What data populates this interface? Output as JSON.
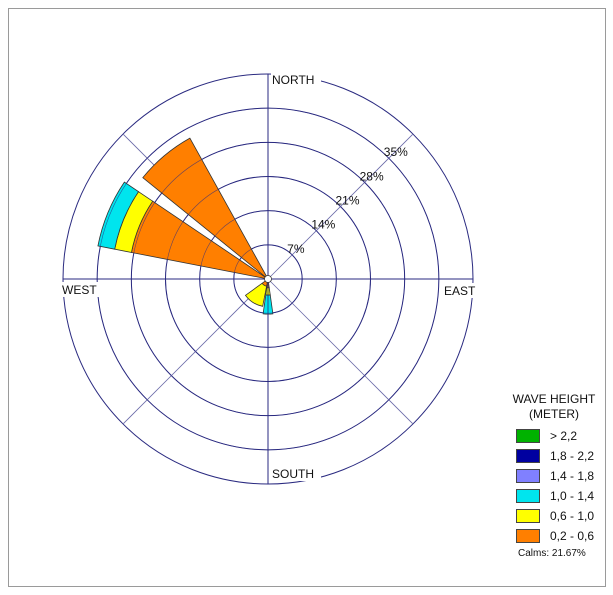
{
  "chart_data": {
    "type": "wind-rose",
    "title": "",
    "directions": [
      "NORTH",
      "EAST",
      "SOUTH",
      "WEST"
    ],
    "radial_ticks": [
      "7%",
      "14%",
      "21%",
      "28%",
      "35%"
    ],
    "radial_values": [
      7,
      14,
      21,
      28,
      35
    ],
    "rmax": 42,
    "legend_title": [
      "WAVE HEIGHT",
      "(METER)"
    ],
    "bins": [
      {
        "label": "> 2,2",
        "color": "#00b200"
      },
      {
        "label": "1,8 - 2,2",
        "color": "#0000a0"
      },
      {
        "label": "1,4 - 1,8",
        "color": "#8080ff"
      },
      {
        "label": "1,0 - 1,4",
        "color": "#00e5ee"
      },
      {
        "label": "0,6 - 1,0",
        "color": "#ffff00"
      },
      {
        "label": "0,2 - 0,6",
        "color": "#ff7f00"
      }
    ],
    "sectors": [
      {
        "direction": "WNW",
        "from_deg": 281,
        "to_deg": 304,
        "values": {
          "0,2 - 0,6": 28.5,
          "0,6 - 1,0": 3.5,
          "1,0 - 1,4": 3.5
        }
      },
      {
        "direction": "NW",
        "from_deg": 309,
        "to_deg": 331,
        "values": {
          "0,2 - 0,6": 33
        }
      },
      {
        "direction": "SSE",
        "from_deg": 172,
        "to_deg": 188,
        "values": {
          "0,2 - 0,6": 1.8,
          "0,6 - 1,0": 1.5,
          "1,0 - 1,4": 3.9
        }
      },
      {
        "direction": "SSW",
        "from_deg": 191,
        "to_deg": 234,
        "values": {
          "0,2 - 0,6": 1.5,
          "0,6 - 1,0": 4.2
        }
      }
    ],
    "calms": "Calms: 21.67%"
  }
}
